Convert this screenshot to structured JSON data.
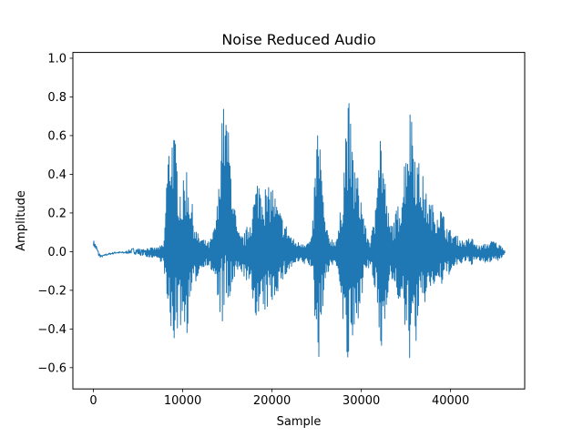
{
  "chart_data": {
    "type": "line",
    "title": "Noise Reduced Audio",
    "xlabel": "Sample",
    "ylabel": "Amplitude",
    "xlim": [
      -2300,
      48300
    ],
    "ylim": [
      -0.71,
      1.03
    ],
    "x_ticks": [
      0,
      10000,
      20000,
      30000,
      40000
    ],
    "x_tick_labels": [
      "0",
      "10000",
      "20000",
      "30000",
      "40000"
    ],
    "y_ticks": [
      -0.6,
      -0.4,
      -0.2,
      0.0,
      0.2,
      0.4,
      0.6,
      0.8,
      1.0
    ],
    "y_tick_labels": [
      "−0.6",
      "−0.4",
      "−0.2",
      "0.0",
      "0.2",
      "0.4",
      "0.6",
      "0.8",
      "1.0"
    ],
    "grid": false,
    "legend": "none",
    "line_color": "#1f77b4",
    "series": [
      {
        "envelope": {
          "x": [
            0,
            300,
            600,
            900,
            1500,
            2500,
            3500,
            4500,
            5000,
            5500,
            6000,
            6500,
            7000,
            7500,
            7900,
            8200,
            8500,
            8900,
            9200,
            9600,
            10000,
            10400,
            10800,
            11200,
            11600,
            12000,
            12500,
            13000,
            13500,
            14000,
            14400,
            14700,
            15000,
            15300,
            15700,
            16100,
            16500,
            17000,
            17500,
            18000,
            18500,
            19000,
            19500,
            20000,
            20500,
            21000,
            21500,
            22000,
            22500,
            23000,
            23500,
            24000,
            24500,
            24800,
            25100,
            25400,
            25700,
            26100,
            26500,
            27000,
            27500,
            28000,
            28300,
            28600,
            28900,
            29200,
            29600,
            30000,
            30500,
            31000,
            31500,
            31800,
            32100,
            32400,
            32800,
            33200,
            33700,
            34200,
            34700,
            35100,
            35400,
            35700,
            36000,
            36400,
            36800,
            37300,
            37800,
            38300,
            38800,
            39300,
            39800,
            40300,
            40800,
            41300,
            41800,
            42300,
            42800,
            43300,
            43800,
            44300,
            44800,
            45300,
            45800,
            46100
          ],
          "upper": [
            0.06,
            0.04,
            0.0,
            -0.02,
            -0.01,
            0.0,
            0.0,
            0.02,
            0.02,
            0.01,
            0.02,
            0.02,
            0.02,
            0.03,
            0.04,
            0.42,
            0.6,
            0.68,
            0.56,
            0.4,
            0.34,
            0.48,
            0.34,
            0.2,
            0.1,
            0.08,
            0.06,
            0.05,
            0.12,
            0.3,
            0.78,
            0.74,
            0.7,
            0.52,
            0.3,
            0.12,
            0.08,
            0.1,
            0.18,
            0.3,
            0.42,
            0.38,
            0.32,
            0.37,
            0.26,
            0.2,
            0.15,
            0.1,
            0.06,
            0.05,
            0.06,
            0.05,
            0.08,
            0.42,
            0.68,
            0.62,
            0.3,
            0.12,
            0.08,
            0.06,
            0.12,
            0.44,
            0.72,
            0.8,
            0.6,
            0.5,
            0.4,
            0.3,
            0.12,
            0.06,
            0.18,
            0.62,
            0.7,
            0.56,
            0.3,
            0.14,
            0.18,
            0.26,
            0.42,
            0.66,
            0.74,
            0.82,
            0.6,
            0.48,
            0.42,
            0.3,
            0.26,
            0.22,
            0.25,
            0.18,
            0.12,
            0.1,
            0.08,
            0.06,
            0.06,
            0.08,
            0.04,
            0.03,
            0.04,
            0.05,
            0.06,
            0.04,
            0.03,
            0.0
          ],
          "lower": [
            0.03,
            0.0,
            -0.03,
            -0.03,
            -0.02,
            -0.01,
            -0.01,
            -0.01,
            -0.02,
            -0.02,
            -0.03,
            -0.03,
            -0.03,
            -0.05,
            -0.06,
            -0.32,
            -0.47,
            -0.5,
            -0.45,
            -0.4,
            -0.38,
            -0.46,
            -0.3,
            -0.2,
            -0.14,
            -0.1,
            -0.07,
            -0.08,
            -0.14,
            -0.28,
            -0.4,
            -0.38,
            -0.34,
            -0.28,
            -0.2,
            -0.12,
            -0.1,
            -0.14,
            -0.2,
            -0.3,
            -0.38,
            -0.36,
            -0.3,
            -0.28,
            -0.22,
            -0.18,
            -0.13,
            -0.1,
            -0.07,
            -0.06,
            -0.07,
            -0.06,
            -0.1,
            -0.36,
            -0.62,
            -0.5,
            -0.28,
            -0.14,
            -0.08,
            -0.07,
            -0.12,
            -0.42,
            -0.63,
            -0.62,
            -0.56,
            -0.5,
            -0.36,
            -0.24,
            -0.12,
            -0.08,
            -0.2,
            -0.42,
            -0.58,
            -0.5,
            -0.28,
            -0.14,
            -0.2,
            -0.26,
            -0.38,
            -0.5,
            -0.56,
            -0.58,
            -0.52,
            -0.4,
            -0.34,
            -0.24,
            -0.2,
            -0.18,
            -0.2,
            -0.16,
            -0.12,
            -0.1,
            -0.08,
            -0.06,
            -0.06,
            -0.07,
            -0.05,
            -0.05,
            -0.06,
            -0.06,
            -0.04,
            -0.05,
            -0.03,
            -0.02
          ]
        }
      }
    ]
  }
}
